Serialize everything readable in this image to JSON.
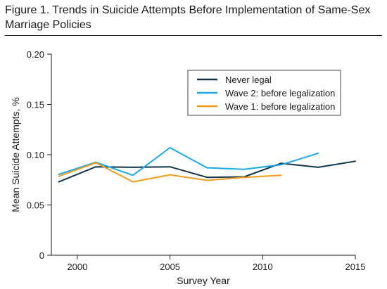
{
  "figure": {
    "title": "Figure 1. Trends in Suicide Attempts Before Implementation of Same-Sex Marriage Policies"
  },
  "colors": {
    "never_legal": "#0f3446",
    "wave2": "#1aa9e6",
    "wave1": "#f39a1e",
    "axis": "#1a1a1a",
    "legend_border": "#444444"
  },
  "chart_data": {
    "type": "line",
    "title": "Figure 1. Trends in Suicide Attempts Before Implementation of Same-Sex Marriage Policies",
    "xlabel": "Survey Year",
    "ylabel": "Mean Suicide Attempts, %",
    "xlim": [
      1998.6,
      2015
    ],
    "ylim": [
      0,
      0.2
    ],
    "xticks": [
      2000,
      2005,
      2010,
      2015
    ],
    "yticks": [
      0,
      0.05,
      0.1,
      0.15,
      0.2
    ],
    "xtick_labels": [
      "2000",
      "2005",
      "2010",
      "2015"
    ],
    "ytick_labels": [
      "0",
      "0.05",
      "0.10",
      "0.15",
      "0.20"
    ],
    "grid": false,
    "legend_position": "top-right",
    "series": [
      {
        "name": "Never legal",
        "color": "#0f3446",
        "x": [
          1999,
          2001,
          2003,
          2005,
          2007,
          2009,
          2011,
          2013,
          2015
        ],
        "y": [
          0.073,
          0.088,
          0.0875,
          0.088,
          0.0775,
          0.078,
          0.0915,
          0.0875,
          0.0935
        ]
      },
      {
        "name": "Wave 2: before legalization",
        "color": "#1aa9e6",
        "x": [
          1999,
          2001,
          2003,
          2005,
          2007,
          2009,
          2011,
          2013
        ],
        "y": [
          0.0805,
          0.0925,
          0.0795,
          0.107,
          0.087,
          0.0855,
          0.09,
          0.1015
        ]
      },
      {
        "name": "Wave 1: before legalization",
        "color": "#f39a1e",
        "x": [
          1999,
          2001,
          2003,
          2005,
          2007,
          2009,
          2011
        ],
        "y": [
          0.0785,
          0.092,
          0.073,
          0.08,
          0.0745,
          0.0775,
          0.0795
        ]
      }
    ]
  }
}
